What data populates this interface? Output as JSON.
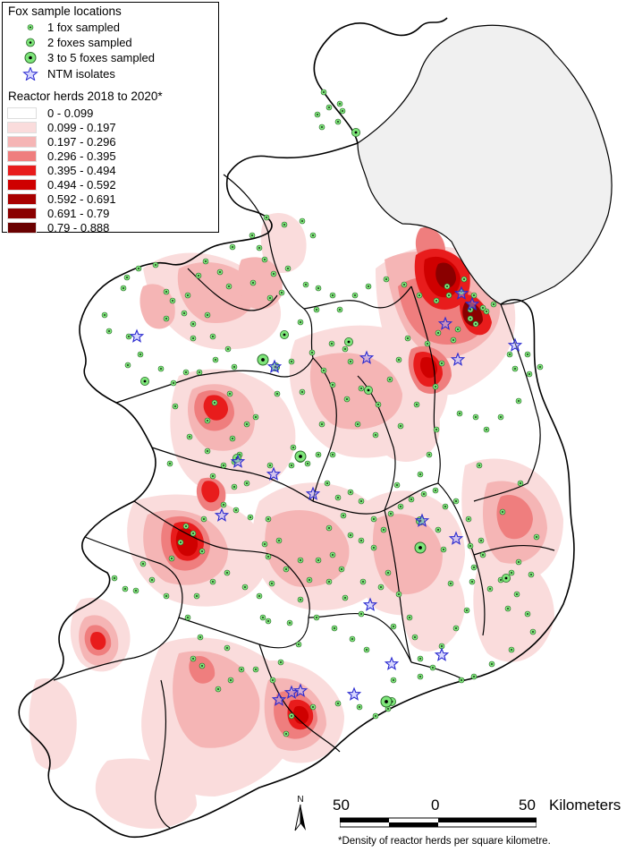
{
  "legend": {
    "fox_title": "Fox sample locations",
    "fox_items": [
      {
        "label": "1 fox sampled",
        "symbol": "dot-small"
      },
      {
        "label": "2 foxes sampled",
        "symbol": "dot-medium"
      },
      {
        "label": "3 to 5 foxes sampled",
        "symbol": "dot-large"
      },
      {
        "label": "NTM isolates",
        "symbol": "star"
      }
    ],
    "reactor_title": "Reactor herds 2018 to 2020*",
    "reactor_classes": [
      {
        "label": "0 - 0.099",
        "color": "#ffffff"
      },
      {
        "label": "0.099 - 0.197",
        "color": "#fadcdc"
      },
      {
        "label": "0.197 - 0.296",
        "color": "#f5b5b5"
      },
      {
        "label": "0.296 - 0.395",
        "color": "#ef7e7e"
      },
      {
        "label": "0.395 - 0.494",
        "color": "#e81c1c"
      },
      {
        "label": "0.494 - 0.592",
        "color": "#cf0000"
      },
      {
        "label": "0.592 - 0.691",
        "color": "#a80000"
      },
      {
        "label": "0.691 - 0.79",
        "color": "#8a0000"
      },
      {
        "label": "0.79 - 0.888",
        "color": "#6a0000"
      }
    ]
  },
  "scale_bar": {
    "left": "50",
    "mid": "0",
    "right": "50",
    "unit": "Kilometers"
  },
  "north_label": "N",
  "footnote": "*Density of reactor herds per square kilometre.",
  "colors": {
    "fox_dot_fill": "#7ee67a",
    "fox_dot_center": "#000000",
    "ntm_star": "#2a2ad0",
    "northern_ireland": "#f0f0f0",
    "boundary": "#000000"
  }
}
